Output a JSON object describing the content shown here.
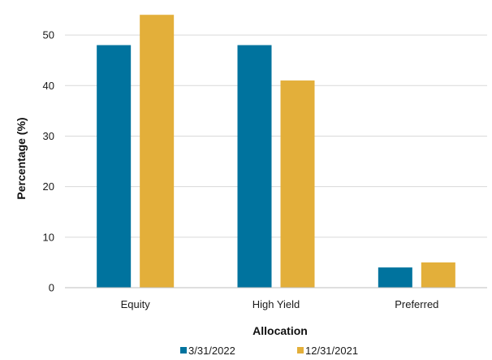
{
  "chart_data": {
    "type": "bar",
    "categories": [
      "Equity",
      "High Yield",
      "Preferred"
    ],
    "series": [
      {
        "name": "3/31/2022",
        "values": [
          48,
          48,
          4
        ],
        "color": "#00739e"
      },
      {
        "name": "12/31/2021",
        "values": [
          54,
          41,
          5
        ],
        "color": "#e3af3a"
      }
    ],
    "xlabel": "Allocation",
    "ylabel": "Percentage (%)",
    "ylim": [
      0,
      55
    ],
    "yticks": [
      0,
      10,
      20,
      30,
      40,
      50
    ],
    "grid": true,
    "legend_position": "bottom"
  }
}
